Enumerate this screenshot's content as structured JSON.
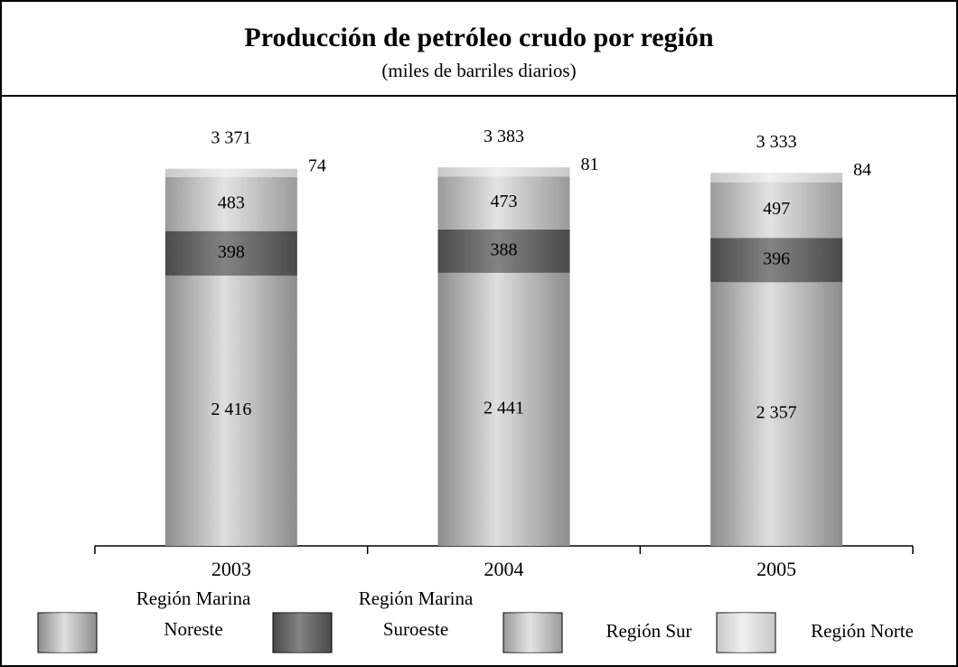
{
  "chart_data": {
    "type": "stacked_bar",
    "title": "Producción de petróleo crudo por región",
    "subtitle": "(miles de barriles diarios)",
    "categories": [
      "2003",
      "2004",
      "2005"
    ],
    "series": [
      {
        "name": "Región Marina Noreste",
        "color": "#8c8c8c",
        "values": [
          2416,
          2441,
          2357
        ],
        "value_labels": [
          "2 416",
          "2 441",
          "2 357"
        ]
      },
      {
        "name": "Región Marina Suroeste",
        "color": "#4a4a4a",
        "values": [
          398,
          388,
          396
        ]
      },
      {
        "name": "Región Sur",
        "color": "#9a9a9a",
        "values": [
          483,
          473,
          497
        ]
      },
      {
        "name": "Región Norte",
        "color": "#c8c8c8",
        "values": [
          74,
          81,
          84
        ]
      }
    ],
    "totals": {
      "values": [
        3371,
        3383,
        3333
      ],
      "value_labels": [
        "3 371",
        "3 383",
        "3 333"
      ]
    },
    "ylim": [
      0,
      3700
    ]
  }
}
